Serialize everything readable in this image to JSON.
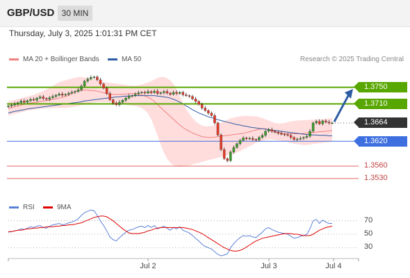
{
  "header": {
    "pair": "GBP/USD",
    "timeframe": "30 MIN"
  },
  "timestamp": "Thursday, July 3, 2025 1:01:31 PM CET",
  "legend": {
    "ma20": {
      "label": "MA 20 + Bollinger Bands",
      "color": "#f08080"
    },
    "ma50": {
      "label": "MA 50",
      "color": "#2c5ba3"
    },
    "source": "Research © 2025 Trading Central"
  },
  "rsi_legend": {
    "rsi": {
      "label": "RSI",
      "color": "#5b7fd6"
    },
    "ma9": {
      "label": "9MA",
      "color": "#e00000"
    }
  },
  "colors": {
    "up_candle": "#3d9a2d",
    "down_candle": "#e43a28",
    "resistance": "#58a700",
    "support": "#3d6fe0",
    "pivot": "#e06060",
    "arrow": "#2c5ba3",
    "band_fill": "#ffd4d4"
  },
  "chart_data": {
    "type": "candlestick",
    "symbol": "GBP/USD",
    "interval": "30 MIN",
    "ylim": [
      1.3508,
      1.3793
    ],
    "x_ticks": [
      "Jul 2",
      "Jul 3",
      "Jul 4"
    ],
    "levels": [
      {
        "label": "1.3750",
        "value": 1.375,
        "kind": "resistance"
      },
      {
        "label": "1.3710",
        "value": 1.371,
        "kind": "resistance"
      },
      {
        "label": "1.3664",
        "value": 1.3664,
        "kind": "last"
      },
      {
        "label": "1.3620",
        "value": 1.362,
        "kind": "support"
      },
      {
        "label": "1.3560",
        "value": 1.356,
        "kind": "pivot"
      },
      {
        "label": "1.3530",
        "value": 1.353,
        "kind": "pivot"
      }
    ],
    "close": [
      1.3705,
      1.3707,
      1.371,
      1.3713,
      1.3717,
      1.3714,
      1.3718,
      1.3721,
      1.3719,
      1.3724,
      1.3727,
      1.3723,
      1.3721,
      1.3725,
      1.3728,
      1.3731,
      1.3734,
      1.3731,
      1.3733,
      1.3736,
      1.3738,
      1.374,
      1.3744,
      1.3753,
      1.3765,
      1.377,
      1.3774,
      1.3775,
      1.3768,
      1.3758,
      1.3748,
      1.3735,
      1.372,
      1.3712,
      1.3708,
      1.3714,
      1.3719,
      1.3724,
      1.3729,
      1.373,
      1.3734,
      1.3737,
      1.3738,
      1.3736,
      1.374,
      1.3737,
      1.3741,
      1.3735,
      1.3737,
      1.374,
      1.3736,
      1.3733,
      1.3738,
      1.3735,
      1.3738,
      1.3732,
      1.373,
      1.3728,
      1.3722,
      1.3716,
      1.3709,
      1.37,
      1.3694,
      1.3688,
      1.3682,
      1.3664,
      1.3635,
      1.36,
      1.3578,
      1.3573,
      1.3594,
      1.3605,
      1.3614,
      1.3622,
      1.3628,
      1.3626,
      1.3627,
      1.3624,
      1.3623,
      1.3629,
      1.3634,
      1.3644,
      1.3648,
      1.3644,
      1.3642,
      1.3639,
      1.3637,
      1.3636,
      1.3634,
      1.3629,
      1.3624,
      1.3625,
      1.3627,
      1.3629,
      1.3632,
      1.3644,
      1.3664,
      1.3668,
      1.3662,
      1.3669,
      1.3666,
      1.3664,
      1.3664
    ],
    "ma20": [
      1.3699,
      1.3701,
      1.3703,
      1.3705,
      1.3707,
      1.3709,
      1.3711,
      1.3712,
      1.3713,
      1.3714,
      1.3716,
      1.3717,
      1.3718,
      1.3719,
      1.3721,
      1.3722,
      1.3724,
      1.3726,
      1.3728,
      1.3731,
      1.3735,
      1.3739,
      1.3742,
      1.3743,
      1.3743,
      1.3743,
      1.3742,
      1.3742,
      1.3741,
      1.3739,
      1.3737,
      1.3735,
      1.3734,
      1.3733,
      1.3733,
      1.3733,
      1.3733,
      1.3734,
      1.3735,
      1.3735,
      1.3735,
      1.3734,
      1.3732,
      1.3729,
      1.3726,
      1.3722,
      1.3716,
      1.3709,
      1.3701,
      1.3694,
      1.3687,
      1.368,
      1.3673,
      1.3666,
      1.3659,
      1.3653,
      1.3648,
      1.3644,
      1.364,
      1.3637,
      1.3634,
      1.3631,
      1.363,
      1.3629,
      1.3629,
      1.363,
      1.3631,
      1.3632,
      1.3633,
      1.3634,
      1.3635,
      1.3636,
      1.3637,
      1.3638,
      1.3639,
      1.3641,
      1.3643,
      1.3645,
      1.3647,
      1.3649,
      1.365,
      1.365,
      1.3648,
      1.3645,
      1.3642,
      1.3641,
      1.364,
      1.3639,
      1.3638,
      1.3638,
      1.3638,
      1.3638,
      1.3638,
      1.3639,
      1.364,
      1.364,
      1.3641,
      1.3642,
      1.3643,
      1.3643,
      1.3644,
      1.3645,
      1.3646
    ],
    "bb_upper": [
      1.3716,
      1.3718,
      1.372,
      1.3722,
      1.3724,
      1.3726,
      1.3728,
      1.373,
      1.3732,
      1.3735,
      1.3738,
      1.3741,
      1.3745,
      1.3749,
      1.3753,
      1.3758,
      1.3762,
      1.3765,
      1.3767,
      1.3769,
      1.3771,
      1.3773,
      1.3775,
      1.3775,
      1.3774,
      1.3773,
      1.3771,
      1.3769,
      1.3767,
      1.3765,
      1.3763,
      1.3762,
      1.3761,
      1.376,
      1.3759,
      1.3758,
      1.3757,
      1.3756,
      1.3755,
      1.3754,
      1.3754,
      1.3755,
      1.3757,
      1.3759,
      1.3762,
      1.3765,
      1.3769,
      1.3773,
      1.3775,
      1.3775,
      1.3772,
      1.3767,
      1.3758,
      1.3745,
      1.373,
      1.3713,
      1.3698,
      1.3686,
      1.3676,
      1.3668,
      1.3662,
      1.3658,
      1.3656,
      1.3656,
      1.3657,
      1.3659,
      1.3662,
      1.3665,
      1.3668,
      1.3672,
      1.3675,
      1.3677,
      1.3679,
      1.368,
      1.3681,
      1.3681,
      1.3681,
      1.368,
      1.368,
      1.3678,
      1.3676,
      1.3673,
      1.367,
      1.3667,
      1.3664,
      1.3663,
      1.3663,
      1.3664,
      1.3666,
      1.3668,
      1.3669,
      1.367,
      1.367,
      1.3671,
      1.3671,
      1.3672,
      1.3672,
      1.3673,
      1.3673,
      1.3673,
      1.3674,
      1.3675,
      1.3676
    ],
    "bb_lower": [
      1.3682,
      1.3684,
      1.3686,
      1.3688,
      1.369,
      1.3692,
      1.3694,
      1.3695,
      1.3696,
      1.3697,
      1.3698,
      1.3699,
      1.37,
      1.37,
      1.37,
      1.37,
      1.37,
      1.37,
      1.37,
      1.3701,
      1.3702,
      1.3703,
      1.3705,
      1.3707,
      1.3708,
      1.371,
      1.3712,
      1.3713,
      1.3714,
      1.3714,
      1.3714,
      1.3714,
      1.3713,
      1.3712,
      1.3711,
      1.371,
      1.3709,
      1.3708,
      1.3707,
      1.3706,
      1.3705,
      1.3703,
      1.37,
      1.3695,
      1.3687,
      1.3673,
      1.3654,
      1.3633,
      1.3612,
      1.3592,
      1.3578,
      1.3568,
      1.3562,
      1.3559,
      1.3558,
      1.3559,
      1.356,
      1.3562,
      1.3564,
      1.3566,
      1.3568,
      1.357,
      1.3572,
      1.3574,
      1.3576,
      1.3578,
      1.358,
      1.3582,
      1.3584,
      1.3586,
      1.3588,
      1.359,
      1.3593,
      1.3596,
      1.36,
      1.3604,
      1.3608,
      1.3612,
      1.3616,
      1.3619,
      1.3621,
      1.3623,
      1.3624,
      1.3624,
      1.3623,
      1.3622,
      1.3621,
      1.3619,
      1.3618,
      1.3616,
      1.3614,
      1.3613,
      1.3612,
      1.3611,
      1.3611,
      1.3612,
      1.3613,
      1.3614,
      1.3615,
      1.3616,
      1.3617,
      1.3618,
      1.3619
    ],
    "ma50": [
      1.3688,
      1.369,
      1.3692,
      1.3693,
      1.3695,
      1.3696,
      1.3698,
      1.3699,
      1.37,
      1.3701,
      1.3702,
      1.3703,
      1.3704,
      1.3705,
      1.3706,
      1.3707,
      1.3708,
      1.3709,
      1.371,
      1.3711,
      1.3712,
      1.3713,
      1.3714,
      1.3715,
      1.3717,
      1.3718,
      1.3719,
      1.372,
      1.3721,
      1.3722,
      1.3723,
      1.3724,
      1.3725,
      1.3726,
      1.3727,
      1.3727,
      1.3728,
      1.3729,
      1.3729,
      1.373,
      1.373,
      1.373,
      1.373,
      1.373,
      1.373,
      1.373,
      1.373,
      1.3729,
      1.3728,
      1.3727,
      1.3726,
      1.3724,
      1.3721,
      1.3718,
      1.3714,
      1.371,
      1.3705,
      1.3701,
      1.3696,
      1.3692,
      1.3688,
      1.3685,
      1.3682,
      1.3679,
      1.3677,
      1.3674,
      1.3672,
      1.367,
      1.3668,
      1.3666,
      1.3664,
      1.3662,
      1.366,
      1.3659,
      1.3657,
      1.3656,
      1.3654,
      1.3653,
      1.3652,
      1.3651,
      1.365,
      1.3649,
      1.3648,
      1.3647,
      1.3646,
      1.3645,
      1.3644,
      1.3643,
      1.3642,
      1.3641,
      1.364,
      1.3639,
      1.3638,
      1.3637,
      1.3636,
      1.3636,
      1.3635,
      1.3635,
      1.3634,
      1.3634,
      1.3634,
      1.3633,
      1.3633
    ],
    "projection": {
      "from": 1.3667,
      "to": 1.3746
    },
    "rsi": {
      "ylim": [
        18,
        80
      ],
      "levels": [
        70,
        50,
        30
      ],
      "rsi": [
        53,
        54,
        55,
        56,
        58,
        57,
        59,
        61,
        60,
        62,
        63,
        60,
        59,
        62,
        64,
        65,
        66,
        64,
        65,
        67,
        68,
        70,
        73,
        78,
        82,
        84,
        86,
        85,
        78,
        70,
        63,
        55,
        46,
        42,
        40,
        45,
        49,
        53,
        56,
        57,
        59,
        61,
        62,
        60,
        63,
        60,
        63,
        58,
        60,
        62,
        59,
        56,
        60,
        58,
        61,
        56,
        54,
        52,
        48,
        44,
        40,
        35,
        32,
        30,
        28,
        24,
        20,
        18,
        19,
        21,
        30,
        36,
        41,
        45,
        48,
        47,
        48,
        46,
        45,
        49,
        53,
        58,
        60,
        57,
        55,
        53,
        52,
        51,
        50,
        47,
        44,
        45,
        47,
        48,
        50,
        58,
        70,
        72,
        66,
        71,
        68,
        66,
        66
      ],
      "ma9": [
        54,
        54,
        55,
        56,
        56,
        57,
        58,
        58,
        59,
        59,
        60,
        60,
        61,
        61,
        61,
        62,
        62,
        63,
        63,
        64,
        64,
        65,
        66,
        67,
        69,
        71,
        73,
        75,
        76,
        77,
        77,
        76,
        73,
        70,
        66,
        62,
        58,
        55,
        52,
        51,
        51,
        51,
        52,
        53,
        55,
        56,
        58,
        59,
        60,
        60,
        60,
        60,
        60,
        60,
        60,
        60,
        59,
        58,
        57,
        55,
        53,
        51,
        48,
        45,
        42,
        39,
        36,
        33,
        30,
        28,
        26,
        25,
        25,
        26,
        28,
        31,
        34,
        37,
        40,
        42,
        44,
        45,
        46,
        47,
        48,
        49,
        50,
        51,
        51,
        51,
        50,
        50,
        49,
        48,
        48,
        48,
        50,
        53,
        56,
        58,
        60,
        61,
        62
      ]
    }
  }
}
